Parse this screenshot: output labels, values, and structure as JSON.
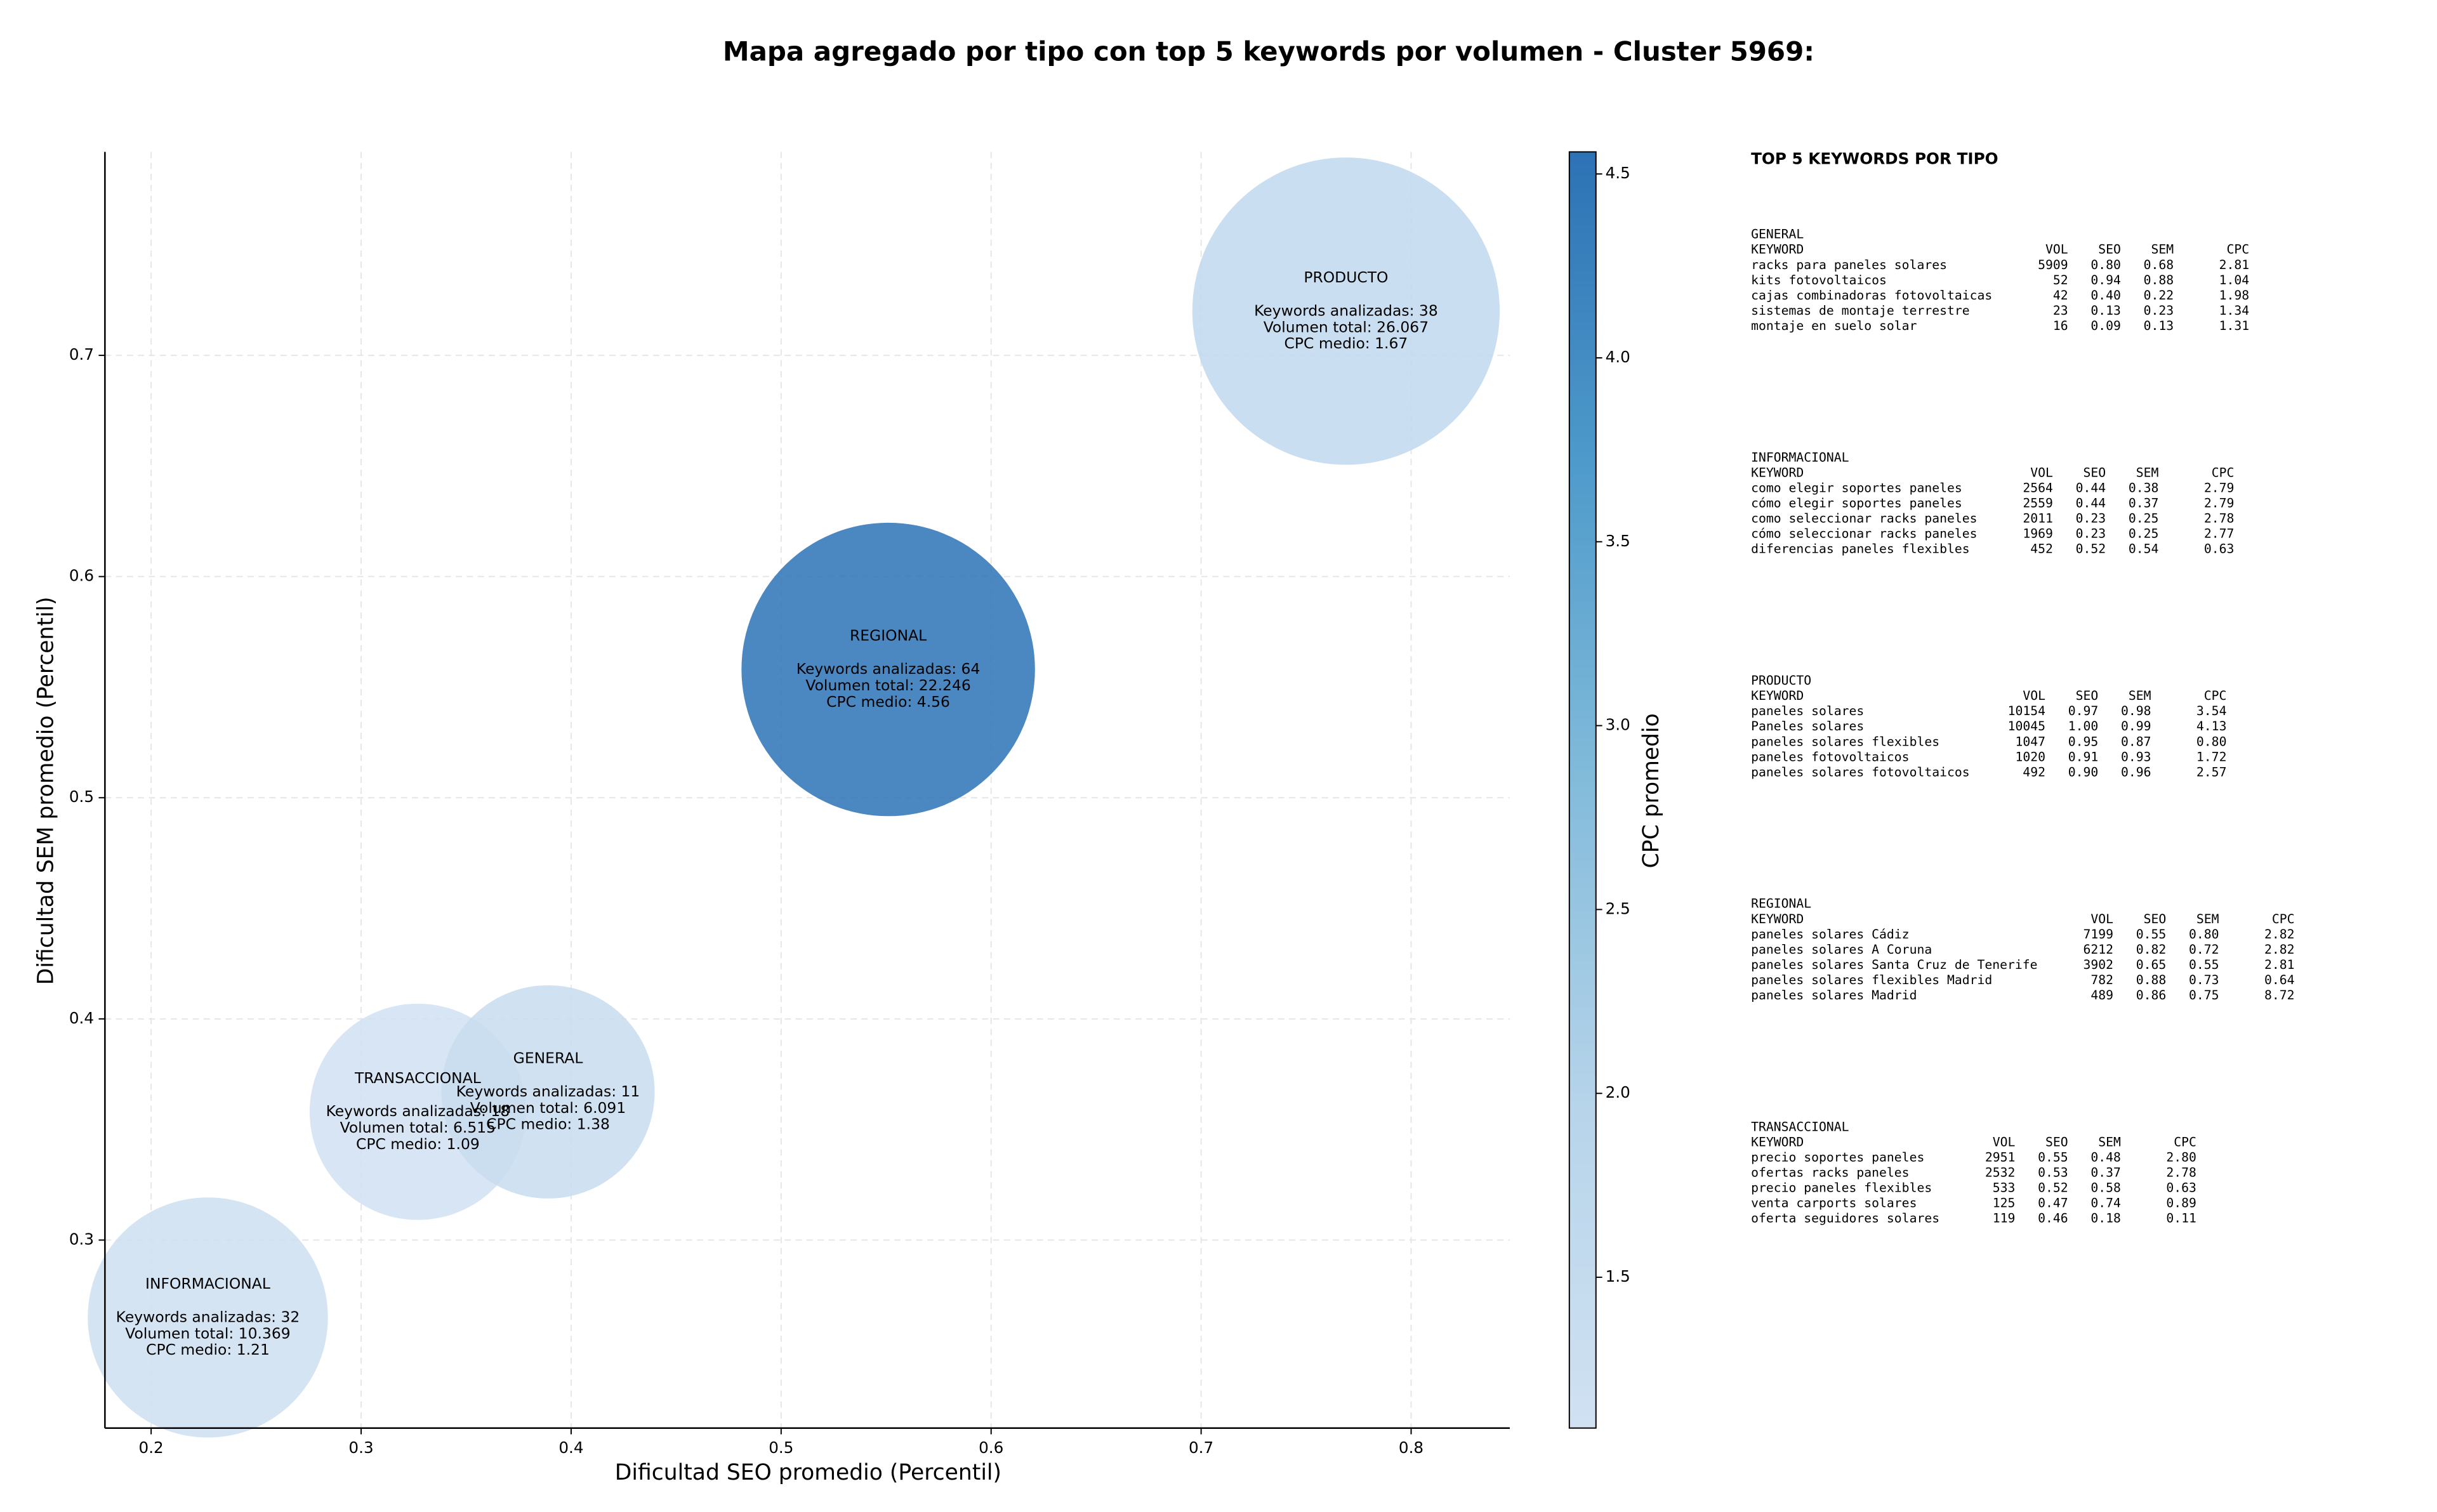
{
  "chart_data": {
    "type": "bubble",
    "title": "Mapa agregado por tipo con top 5 keywords por volumen - Cluster 5969:",
    "xlabel": "Dificultad SEO promedio (Percentil)",
    "ylabel": "Dificultad SEM promedio (Percentil)",
    "xlim": [
      0.178,
      0.847
    ],
    "ylim": [
      0.215,
      0.792
    ],
    "xticks": [
      0.2,
      0.3,
      0.4,
      0.5,
      0.6,
      0.7,
      0.8
    ],
    "yticks": [
      0.3,
      0.4,
      0.5,
      0.6,
      0.7
    ],
    "grid": true,
    "colorbar": {
      "label": "CPC promedio",
      "lim": [
        1.09,
        4.56
      ],
      "ticks": [
        1.5,
        {
          "value": 2,
          "label": "2.0"
        },
        2.5,
        {
          "value": 3,
          "label": "3.0"
        },
        3.5,
        {
          "value": 4,
          "label": "4.0"
        },
        4.5
      ],
      "colormap": [
        "#d0e1f2",
        "#b7d4ea",
        "#84bcdb",
        "#4f9bcb",
        "#2c72b5"
      ]
    },
    "point_text": {
      "keywords": "Keywords analizadas:",
      "volume": "Volumen total:",
      "cpc": "CPC medio:"
    },
    "series": [
      {
        "name": "TRANSACCIONAL",
        "x": 0.327,
        "y": 0.358,
        "keywords": 18,
        "volume": 6515,
        "volume_label": "6.515",
        "cpc": 1.09
      },
      {
        "name": "GENERAL",
        "x": 0.389,
        "y": 0.367,
        "keywords": 11,
        "volume": 6091,
        "volume_label": "6.091",
        "cpc": 1.38
      },
      {
        "name": "INFORMACIONAL",
        "x": 0.227,
        "y": 0.265,
        "keywords": 32,
        "volume": 10369,
        "volume_label": "10.369",
        "cpc": 1.21
      },
      {
        "name": "REGIONAL",
        "x": 0.551,
        "y": 0.558,
        "keywords": 64,
        "volume": 22246,
        "volume_label": "22.246",
        "cpc": 4.56
      },
      {
        "name": "PRODUCTO",
        "x": 0.769,
        "y": 0.72,
        "keywords": 38,
        "volume": 26067,
        "volume_label": "26.067",
        "cpc": 1.67
      }
    ]
  },
  "side_panel": {
    "title": "TOP 5 KEYWORDS POR TIPO",
    "columns": [
      "KEYWORD",
      "VOL",
      "SEO",
      "SEM",
      "CPC"
    ],
    "sections": [
      {
        "name": "GENERAL",
        "rows": [
          [
            "racks para paneles solares",
            "5909",
            "0.80",
            "0.68",
            "2.81"
          ],
          [
            "kits fotovoltaicos",
            "52",
            "0.94",
            "0.88",
            "1.04"
          ],
          [
            "cajas combinadoras fotovoltaicas",
            "42",
            "0.40",
            "0.22",
            "1.98"
          ],
          [
            "sistemas de montaje terrestre",
            "23",
            "0.13",
            "0.23",
            "1.34"
          ],
          [
            "montaje en suelo solar",
            "16",
            "0.09",
            "0.13",
            "1.31"
          ]
        ]
      },
      {
        "name": "INFORMACIONAL",
        "rows": [
          [
            "como elegir soportes paneles",
            "2564",
            "0.44",
            "0.38",
            "2.79"
          ],
          [
            "cómo elegir soportes paneles",
            "2559",
            "0.44",
            "0.37",
            "2.79"
          ],
          [
            "como seleccionar racks paneles",
            "2011",
            "0.23",
            "0.25",
            "2.78"
          ],
          [
            "cómo seleccionar racks paneles",
            "1969",
            "0.23",
            "0.25",
            "2.77"
          ],
          [
            "diferencias paneles flexibles",
            "452",
            "0.52",
            "0.54",
            "0.63"
          ]
        ]
      },
      {
        "name": "PRODUCTO",
        "rows": [
          [
            "paneles solares",
            "10154",
            "0.97",
            "0.98",
            "3.54"
          ],
          [
            "Paneles solares",
            "10045",
            "1.00",
            "0.99",
            "4.13"
          ],
          [
            "paneles solares flexibles",
            "1047",
            "0.95",
            "0.87",
            "0.80"
          ],
          [
            "paneles fotovoltaicos",
            "1020",
            "0.91",
            "0.93",
            "1.72"
          ],
          [
            "paneles solares fotovoltaicos",
            "492",
            "0.90",
            "0.96",
            "2.57"
          ]
        ]
      },
      {
        "name": "REGIONAL",
        "rows": [
          [
            "paneles solares Cádiz",
            "7199",
            "0.55",
            "0.80",
            "2.82"
          ],
          [
            "paneles solares A Coruna",
            "6212",
            "0.82",
            "0.72",
            "2.82"
          ],
          [
            "paneles solares Santa Cruz de Tenerife",
            "3902",
            "0.65",
            "0.55",
            "2.81"
          ],
          [
            "paneles solares flexibles Madrid",
            "782",
            "0.88",
            "0.73",
            "0.64"
          ],
          [
            "paneles solares Madrid",
            "489",
            "0.86",
            "0.75",
            "8.72"
          ]
        ]
      },
      {
        "name": "TRANSACCIONAL",
        "rows": [
          [
            "precio soportes paneles",
            "2951",
            "0.55",
            "0.48",
            "2.80"
          ],
          [
            "ofertas racks paneles",
            "2532",
            "0.53",
            "0.37",
            "2.78"
          ],
          [
            "precio paneles flexibles",
            "533",
            "0.52",
            "0.58",
            "0.63"
          ],
          [
            "venta carports solares",
            "125",
            "0.47",
            "0.74",
            "0.89"
          ],
          [
            "oferta seguidores solares",
            "119",
            "0.46",
            "0.18",
            "0.11"
          ]
        ]
      }
    ]
  }
}
